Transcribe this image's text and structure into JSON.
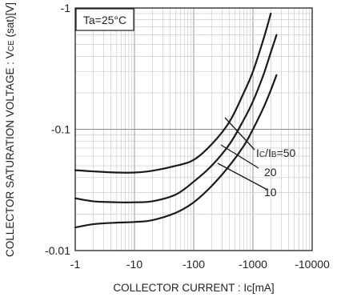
{
  "chart_data": {
    "type": "line",
    "title": "",
    "xlabel": "COLLECTOR CURRENT : Ic[mA]",
    "ylabel": "COLLECTOR SATURATION VOLTAGE : VCE (sat)[V]",
    "ylabel_parts": {
      "main": "COLLECTOR SATURATION VOLTAGE : V",
      "sub": "CE",
      "tail": " (sat)[V]"
    },
    "x_scale": "log",
    "y_scale": "log",
    "x_axis_sign": "negative",
    "y_axis_sign": "negative",
    "xlim": [
      1,
      10000
    ],
    "ylim": [
      0.01,
      1
    ],
    "x_ticks": [
      1,
      10,
      100,
      1000,
      10000
    ],
    "x_tick_labels": [
      "-1",
      "-10",
      "-100",
      "-1000",
      "-10000"
    ],
    "y_ticks": [
      0.01,
      0.1,
      1
    ],
    "y_tick_labels": [
      "-0.01",
      "-0.1",
      "-1"
    ],
    "grid": true,
    "annotation": "Ta=25°C",
    "series": [
      {
        "label": "50",
        "x": [
          1,
          2,
          5,
          10,
          20,
          50,
          100,
          200,
          400,
          700,
          1000,
          1500,
          2000
        ],
        "y": [
          0.046,
          0.045,
          0.044,
          0.044,
          0.0455,
          0.05,
          0.056,
          0.075,
          0.115,
          0.2,
          0.3,
          0.55,
          0.9
        ]
      },
      {
        "label": "20",
        "x": [
          1,
          2,
          5,
          10,
          20,
          50,
          100,
          200,
          400,
          700,
          1000,
          1500,
          2000,
          2500
        ],
        "y": [
          0.027,
          0.0255,
          0.025,
          0.025,
          0.0255,
          0.029,
          0.037,
          0.05,
          0.075,
          0.12,
          0.17,
          0.28,
          0.43,
          0.6
        ]
      },
      {
        "label": "10",
        "x": [
          1,
          2,
          5,
          10,
          20,
          50,
          100,
          200,
          400,
          700,
          1000,
          1500,
          2000,
          2500
        ],
        "y": [
          0.0155,
          0.0165,
          0.017,
          0.0172,
          0.0178,
          0.0205,
          0.025,
          0.034,
          0.05,
          0.073,
          0.1,
          0.15,
          0.21,
          0.28
        ]
      }
    ],
    "legend_prefix": {
      "main": "I",
      "sub": "C",
      "mid": "/I",
      "sub2": "B",
      "eq": "="
    }
  }
}
